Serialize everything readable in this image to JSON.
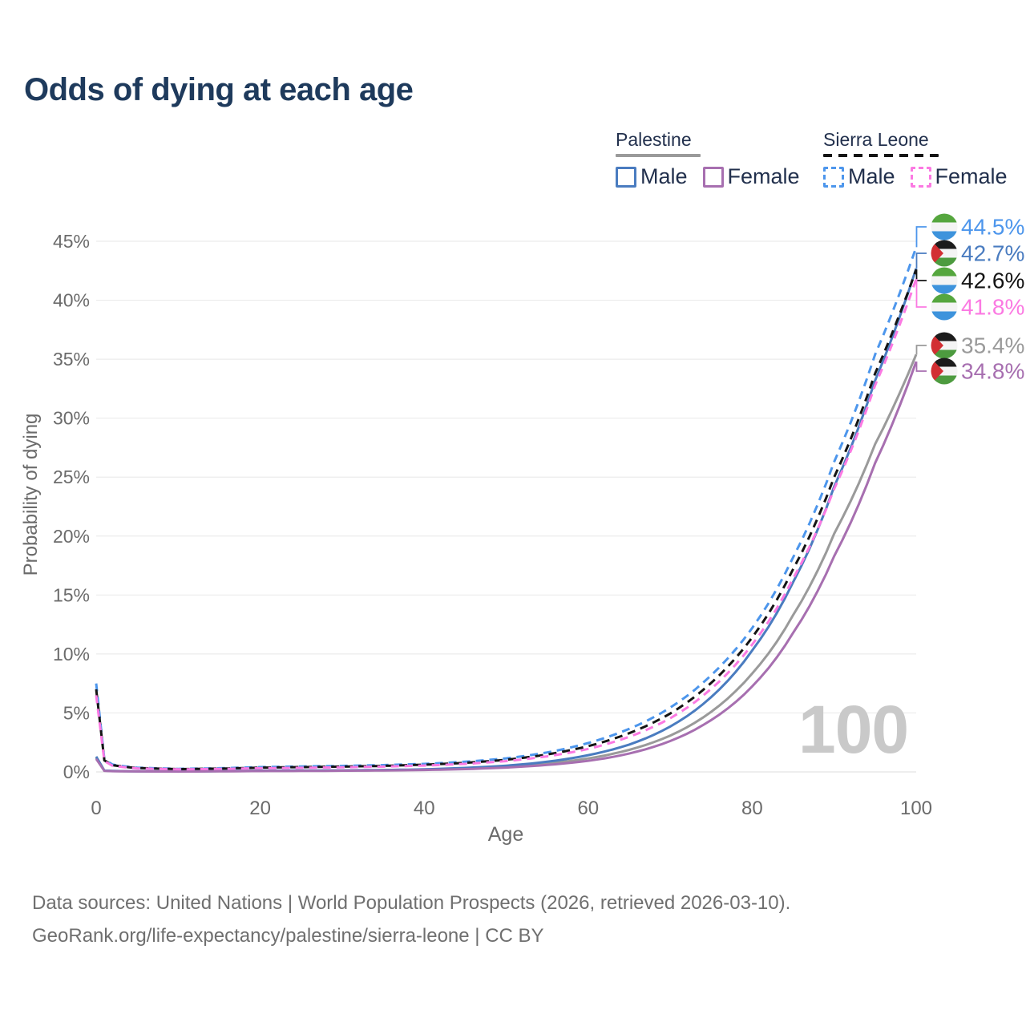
{
  "title": "Odds of dying at each age",
  "watermark": "100",
  "colors": {
    "title_text": "#1e3a5c",
    "axis_text": "#6b6b6b",
    "grid": "#ececec",
    "grid_zero": "#e3e3e3",
    "watermark": "#c9c9c9",
    "footer_text": "#6f6f6f",
    "legend_text": "#22304d",
    "palestine_male": "#4a7cc0",
    "palestine_female": "#a76fb0",
    "palestine_both": "#9a9a9a",
    "sierra_leone_male": "#4d96ec",
    "sierra_leone_female": "#fb79e2",
    "sierra_leone_both": "#141414",
    "flag_sl_green": "#55a63e",
    "flag_sl_white": "#f4f4f4",
    "flag_sl_blue": "#3d93dc",
    "flag_ps_black": "#1c1c1c",
    "flag_ps_white": "#f4f4f4",
    "flag_ps_green": "#4d9b3f",
    "flag_ps_red": "#d22f33"
  },
  "legend": {
    "groups": [
      {
        "label": "Palestine",
        "line_style": "solid",
        "underline_color": "#9a9a9a",
        "items": [
          {
            "label": "Male",
            "color": "#4a7cc0",
            "style": "solid"
          },
          {
            "label": "Female",
            "color": "#a76fb0",
            "style": "solid"
          }
        ]
      },
      {
        "label": "Sierra Leone",
        "line_style": "dashed",
        "underline_color": "#141414",
        "items": [
          {
            "label": "Male",
            "color": "#4d96ec",
            "style": "dashed"
          },
          {
            "label": "Female",
            "color": "#fb79e2",
            "style": "dashed"
          }
        ]
      }
    ]
  },
  "chart_data": {
    "type": "line",
    "title": "Odds of dying at each age",
    "xlabel": "Age",
    "ylabel": "Probability of dying",
    "xlim": [
      0,
      100
    ],
    "ylim": [
      0,
      46
    ],
    "x_ticks": [
      0,
      20,
      40,
      60,
      80,
      100
    ],
    "y_ticks": [
      0,
      5,
      10,
      15,
      20,
      25,
      30,
      35,
      40,
      45
    ],
    "y_tick_suffix": "%",
    "grid": true,
    "x": [
      0,
      1,
      2,
      5,
      10,
      15,
      20,
      25,
      30,
      35,
      40,
      45,
      50,
      55,
      60,
      65,
      70,
      75,
      80,
      85,
      90,
      95,
      100
    ],
    "series": [
      {
        "name": "Palestine Male",
        "country": "Palestine",
        "sex": "Male",
        "style": "solid",
        "color_key": "palestine_male",
        "values": [
          1.3,
          0.11,
          0.08,
          0.05,
          0.04,
          0.07,
          0.1,
          0.12,
          0.13,
          0.16,
          0.22,
          0.34,
          0.53,
          0.86,
          1.42,
          2.32,
          3.85,
          6.35,
          10.3,
          16.1,
          24.2,
          33.2,
          42.7
        ]
      },
      {
        "name": "Palestine Female",
        "country": "Palestine",
        "sex": "Female",
        "style": "solid",
        "color_key": "palestine_female",
        "values": [
          1.1,
          0.09,
          0.06,
          0.04,
          0.03,
          0.05,
          0.07,
          0.08,
          0.1,
          0.12,
          0.16,
          0.24,
          0.37,
          0.59,
          0.94,
          1.56,
          2.62,
          4.4,
          7.25,
          11.8,
          18.3,
          26.2,
          34.8
        ]
      },
      {
        "name": "Palestine Both sexes",
        "country": "Palestine",
        "sex": "Both sexes",
        "style": "solid",
        "color_key": "palestine_both",
        "values": [
          1.2,
          0.1,
          0.07,
          0.045,
          0.035,
          0.06,
          0.08,
          0.1,
          0.11,
          0.14,
          0.19,
          0.28,
          0.44,
          0.71,
          1.14,
          1.87,
          3.08,
          5.1,
          8.35,
          13.3,
          20.2,
          27.8,
          35.4
        ]
      },
      {
        "name": "Sierra Leone Male",
        "country": "Sierra Leone",
        "sex": "Male",
        "style": "dashed",
        "color_key": "sierra_leone_male",
        "values": [
          7.5,
          1.05,
          0.62,
          0.36,
          0.26,
          0.31,
          0.41,
          0.46,
          0.51,
          0.58,
          0.68,
          0.86,
          1.15,
          1.65,
          2.45,
          3.65,
          5.45,
          8.2,
          12.2,
          18.2,
          26.3,
          35.4,
          44.5
        ]
      },
      {
        "name": "Sierra Leone Female",
        "country": "Sierra Leone",
        "sex": "Female",
        "style": "dashed",
        "color_key": "sierra_leone_female",
        "values": [
          6.5,
          0.92,
          0.52,
          0.3,
          0.22,
          0.25,
          0.31,
          0.35,
          0.39,
          0.45,
          0.54,
          0.68,
          0.92,
          1.32,
          1.95,
          2.98,
          4.55,
          7.05,
          10.8,
          16.4,
          24.0,
          32.8,
          41.8
        ]
      },
      {
        "name": "Sierra Leone Both sexes",
        "country": "Sierra Leone",
        "sex": "Both sexes",
        "style": "dashed",
        "color_key": "sierra_leone_both",
        "values": [
          7.0,
          0.98,
          0.57,
          0.33,
          0.24,
          0.28,
          0.36,
          0.41,
          0.45,
          0.51,
          0.61,
          0.77,
          1.03,
          1.48,
          2.18,
          3.28,
          4.95,
          7.55,
          11.4,
          17.2,
          25.0,
          33.8,
          42.6
        ]
      }
    ]
  },
  "end_labels": [
    {
      "value": "44.5%",
      "flag": "sierra-leone",
      "series_index": 3,
      "color": "#4d96ec"
    },
    {
      "value": "42.7%",
      "flag": "palestine",
      "series_index": 0,
      "color": "#4a7cc0"
    },
    {
      "value": "42.6%",
      "flag": "sierra-leone",
      "series_index": 5,
      "color": "#141414"
    },
    {
      "value": "41.8%",
      "flag": "sierra-leone",
      "series_index": 4,
      "color": "#fb79e2"
    },
    {
      "value": "35.4%",
      "flag": "palestine",
      "series_index": 2,
      "color": "#9a9a9a"
    },
    {
      "value": "34.8%",
      "flag": "palestine",
      "series_index": 1,
      "color": "#a76fb0"
    }
  ],
  "footer": {
    "line1": "Data sources: United Nations | World Population Prospects (2026, retrieved 2026-03-10).",
    "line2": "GeoRank.org/life-expectancy/palestine/sierra-leone | CC BY"
  }
}
